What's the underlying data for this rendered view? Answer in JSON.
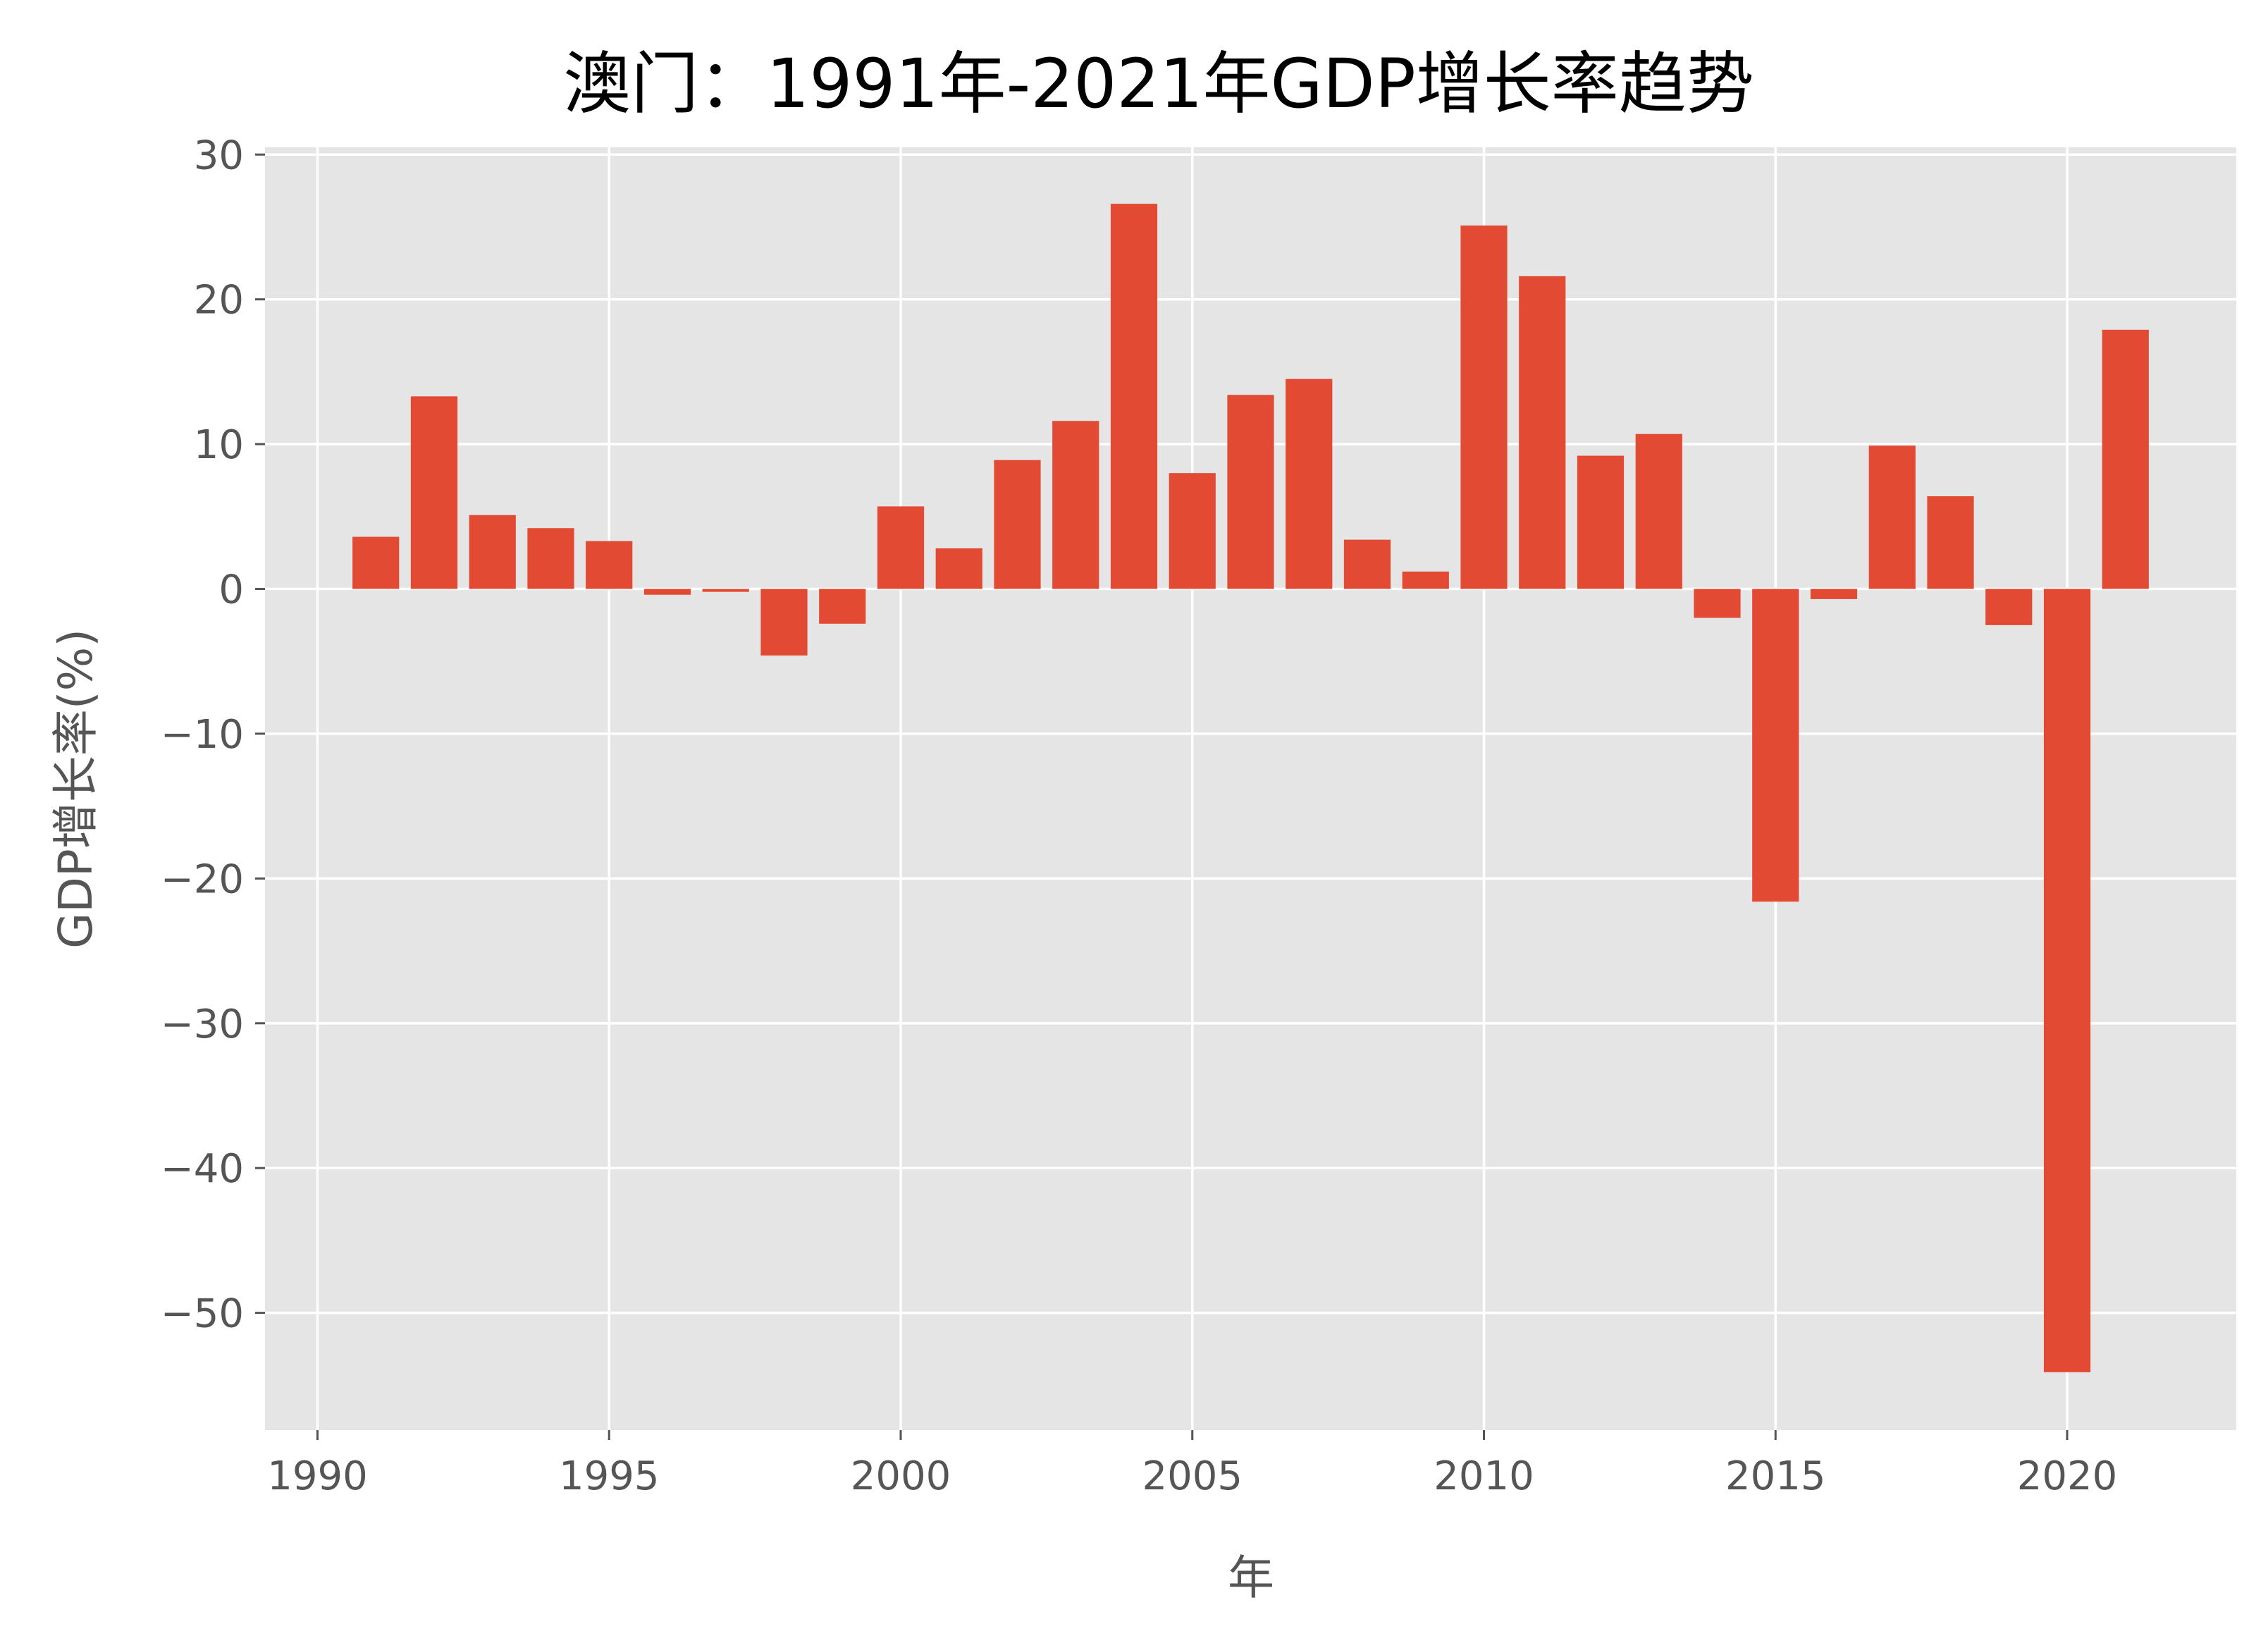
{
  "chart_data": {
    "type": "bar",
    "title": "澳门：1991年-2021年GDP增长率趋势",
    "xlabel": "年",
    "ylabel": "GDP增长率(%)",
    "x": [
      1991,
      1992,
      1993,
      1994,
      1995,
      1996,
      1997,
      1998,
      1999,
      2000,
      2001,
      2002,
      2003,
      2004,
      2005,
      2006,
      2007,
      2008,
      2009,
      2010,
      2011,
      2012,
      2013,
      2014,
      2015,
      2016,
      2017,
      2018,
      2019,
      2020,
      2021
    ],
    "values": [
      3.6,
      13.3,
      5.1,
      4.2,
      3.3,
      -0.4,
      -0.2,
      -4.6,
      -2.4,
      5.7,
      2.8,
      8.9,
      11.6,
      26.6,
      8.0,
      13.4,
      14.5,
      3.4,
      1.2,
      25.1,
      21.6,
      9.2,
      10.7,
      -2.0,
      -21.6,
      -0.7,
      9.9,
      6.4,
      -2.5,
      -54.1,
      17.9
    ],
    "xticks": [
      1990,
      1995,
      2000,
      2005,
      2010,
      2015,
      2020
    ],
    "yticks": [
      30,
      20,
      10,
      0,
      -10,
      -20,
      -30,
      -40,
      -50
    ],
    "xlim": [
      1989.1,
      1922.9
    ],
    "ylim": [
      -58.1,
      30.5
    ],
    "grid": true,
    "colors": {
      "bar": "#E24A33",
      "plot_background": "#E5E5E5",
      "grid": "#FFFFFF",
      "tick_text": "#555555",
      "title_text": "#000000"
    }
  }
}
